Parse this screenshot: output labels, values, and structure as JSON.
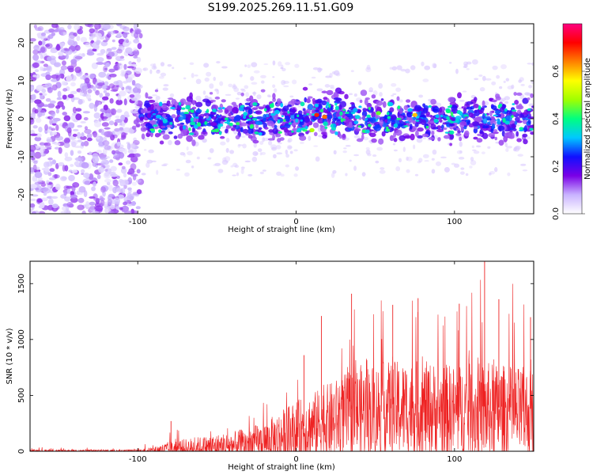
{
  "title": "S199.2025.269.11.51.G09",
  "chart_data": [
    {
      "type": "heatmap",
      "xlabel": "Height of straight line (km)",
      "ylabel": "Frequency (Hz)",
      "xlim": [
        -168,
        150
      ],
      "ylim": [
        -25,
        25
      ],
      "xticks": [
        -100,
        0,
        100
      ],
      "yticks": [
        -20,
        -10,
        0,
        10,
        20
      ],
      "colorbar": {
        "label": "Normalized spectral amplitude",
        "range": [
          0,
          0.8
        ],
        "ticks": [
          "0.0",
          "0.2",
          "0.4",
          "0.6"
        ],
        "tick_values": [
          0.0,
          0.2,
          0.4,
          0.6
        ],
        "colors": [
          "#ffffff",
          "#c9b3ff",
          "#7a00e6",
          "#1010ff",
          "#00c8ff",
          "#00ff80",
          "#a0ff00",
          "#ffff00",
          "#ff8000",
          "#ff0000",
          "#ff0080"
        ]
      },
      "description_regions": [
        {
          "x_range": [
            -168,
            -98
          ],
          "freq_range": [
            -25,
            25
          ],
          "amplitude": 0.08
        },
        {
          "x_range": [
            -98,
            150
          ],
          "freq_range": [
            -7,
            7
          ],
          "amplitude": 0.25
        }
      ],
      "peak_points": [
        {
          "x": 13,
          "freq": 1,
          "amplitude": 0.7
        },
        {
          "x": 18,
          "freq": 0.5,
          "amplitude": 0.65
        },
        {
          "x": 75,
          "freq": 1,
          "amplitude": 0.6
        },
        {
          "x": 10,
          "freq": -3,
          "amplitude": 0.5
        },
        {
          "x": 52,
          "freq": 1.5,
          "amplitude": 0.45
        },
        {
          "x": 96,
          "freq": 2,
          "amplitude": 0.4
        }
      ]
    },
    {
      "type": "line",
      "xlabel": "Height of straight line (km)",
      "ylabel": "SNR (10 * v/v)",
      "xlim": [
        -168,
        150
      ],
      "ylim": [
        0,
        1700
      ],
      "xticks": [
        -100,
        0,
        100
      ],
      "yticks": [
        0,
        500,
        1000,
        1500
      ],
      "color": "#ee2222",
      "envelope": {
        "x": [
          -168,
          -100,
          -90,
          -80,
          -60,
          -40,
          -20,
          -10,
          0,
          10,
          20,
          30,
          40,
          60,
          80,
          100,
          120,
          140,
          150
        ],
        "base": [
          5,
          5,
          10,
          25,
          40,
          60,
          100,
          150,
          200,
          250,
          300,
          350,
          400,
          420,
          420,
          400,
          400,
          380,
          380
        ],
        "spread": [
          15,
          15,
          40,
          90,
          130,
          160,
          220,
          300,
          350,
          380,
          420,
          470,
          520,
          540,
          540,
          520,
          560,
          520,
          520
        ]
      },
      "spikes": [
        {
          "x": -79,
          "y": 270
        },
        {
          "x": 5,
          "y": 860
        },
        {
          "x": 16,
          "y": 1210
        },
        {
          "x": 35,
          "y": 1410
        },
        {
          "x": 61,
          "y": 1310
        },
        {
          "x": 77,
          "y": 1370
        },
        {
          "x": 103,
          "y": 1320
        },
        {
          "x": 119,
          "y": 1700
        },
        {
          "x": 128,
          "y": 1360
        },
        {
          "x": 148,
          "y": 1200
        }
      ]
    }
  ]
}
